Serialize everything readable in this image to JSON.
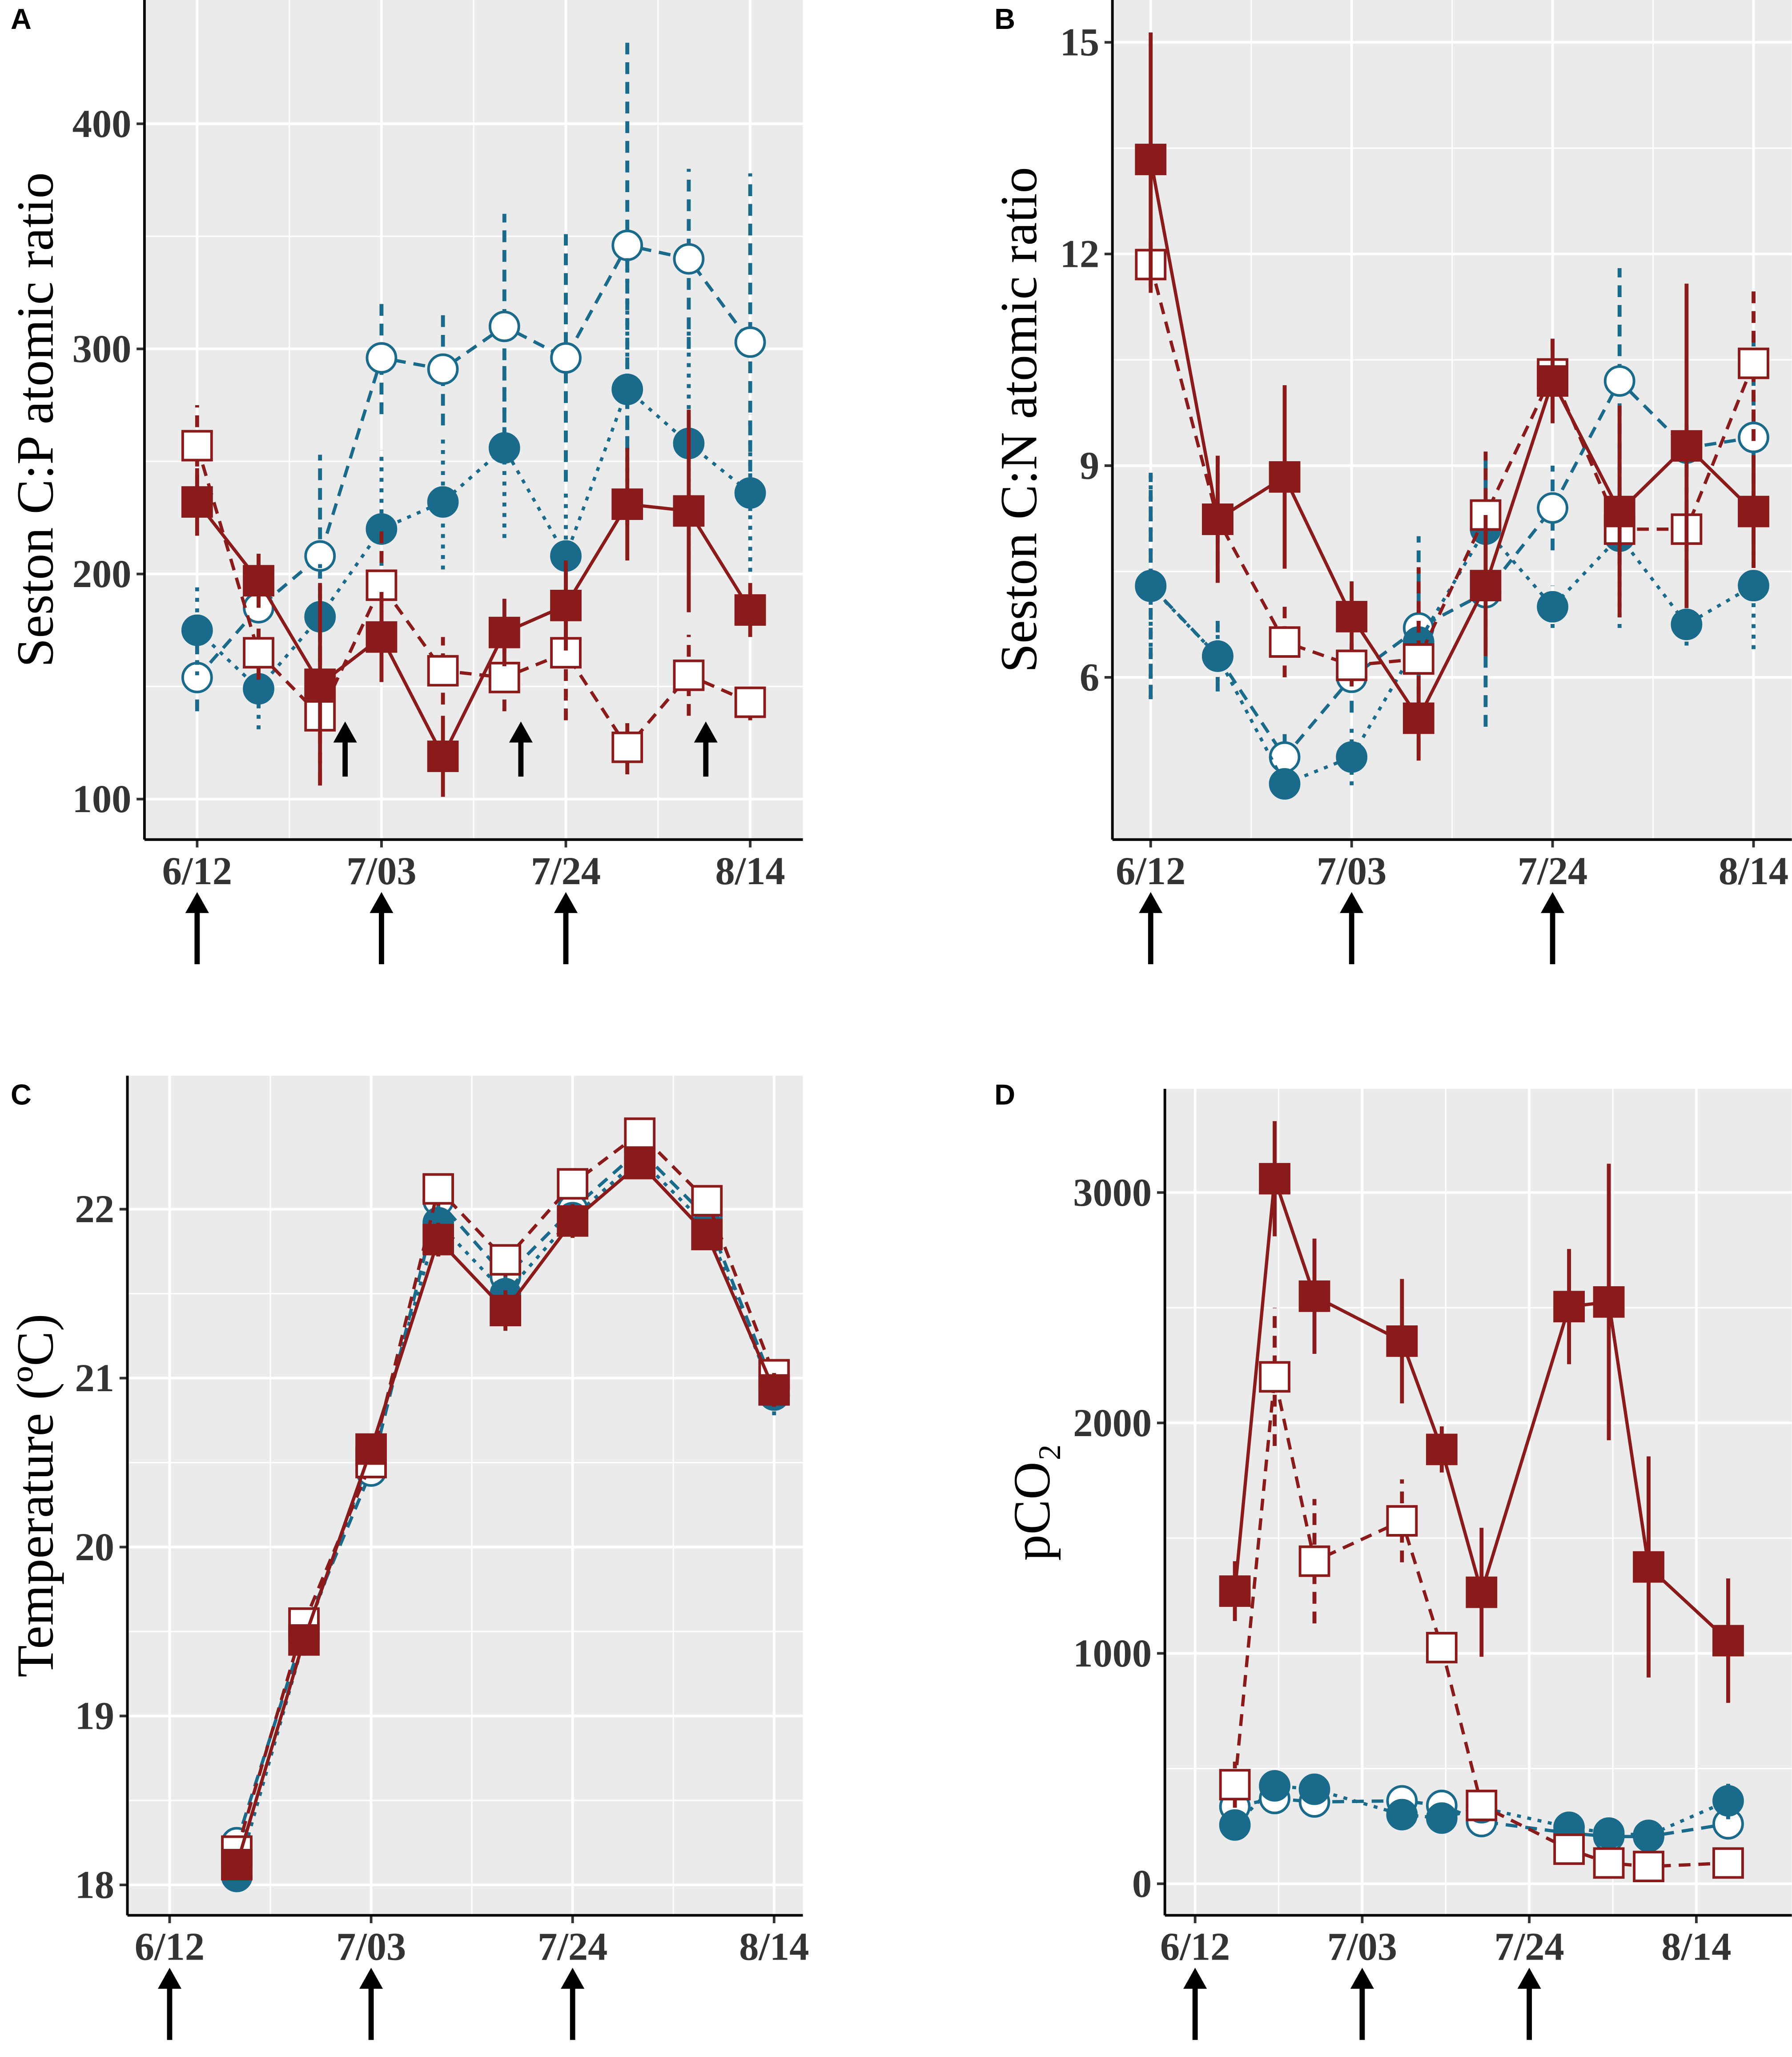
{
  "chart_data": [
    {
      "type": "line",
      "panel": "A",
      "y_label": "Seston C:P atomic ratio",
      "x": [
        0,
        7,
        14,
        21,
        28,
        35,
        42,
        49,
        56,
        63
      ],
      "xlim": [
        -6,
        69
      ],
      "xticks": [
        {
          "value": 0,
          "label": "6/12"
        },
        {
          "value": 21,
          "label": "7/03"
        },
        {
          "value": 42,
          "label": "7/24"
        },
        {
          "value": 63,
          "label": "8/14"
        }
      ],
      "ylim": [
        82,
        455
      ],
      "yticks": [
        100,
        200,
        300,
        400
      ],
      "grid": true,
      "series": [
        {
          "color": "#1a6a8c",
          "marker": "circle",
          "filled": false,
          "dash": "dashed",
          "values": [
            154,
            185,
            208,
            296,
            291,
            310,
            296,
            346,
            340,
            303
          ],
          "errors": [
            15,
            15,
            45,
            25,
            25,
            50,
            55,
            90,
            40,
            75
          ]
        },
        {
          "color": "#1a6a8c",
          "marker": "circle",
          "filled": true,
          "dash": "dotted",
          "values": [
            175,
            149,
            181,
            220,
            232,
            256,
            208,
            282,
            258,
            236
          ],
          "errors": [
            20,
            18,
            25,
            35,
            30,
            40,
            30,
            60,
            50,
            35
          ]
        },
        {
          "color": "#8b1a1a",
          "marker": "square",
          "filled": false,
          "dash": "dashed",
          "values": [
            257,
            165,
            137,
            195,
            157,
            154,
            165,
            123,
            155,
            143
          ],
          "errors": [
            18,
            12,
            30,
            25,
            15,
            15,
            30,
            12,
            18,
            8
          ]
        },
        {
          "color": "#8b1a1a",
          "marker": "square",
          "filled": true,
          "dash": "solid",
          "values": [
            232,
            197,
            151,
            172,
            119,
            174,
            186,
            231,
            228,
            184
          ],
          "errors": [
            15,
            12,
            45,
            20,
            18,
            15,
            20,
            25,
            45,
            12
          ]
        }
      ]
    },
    {
      "type": "line",
      "panel": "B",
      "y_label": "Seston C:N atomic ratio",
      "x": [
        0,
        7,
        14,
        21,
        28,
        35,
        42,
        49,
        56,
        63
      ],
      "xlim": [
        -4,
        67
      ],
      "xticks": [
        {
          "value": 0,
          "label": "6/12"
        },
        {
          "value": 21,
          "label": "7/03"
        },
        {
          "value": 42,
          "label": "7/24"
        },
        {
          "value": 63,
          "label": "8/14"
        }
      ],
      "ylim": [
        3.7,
        15.6
      ],
      "yticks": [
        6,
        9,
        12,
        15
      ],
      "grid": true,
      "series": [
        {
          "color": "#1a6a8c",
          "marker": "circle",
          "filled": false,
          "dash": "dashed",
          "values": [
            7.3,
            6.3,
            4.87,
            6.0,
            6.7,
            7.2,
            8.4,
            10.2,
            9.25,
            9.4
          ],
          "errors": [
            1.6,
            0.5,
            0.4,
            0.5,
            1.3,
            1.9,
            0.6,
            1.6,
            0.4,
            1.5
          ]
        },
        {
          "color": "#1a6a8c",
          "marker": "circle",
          "filled": true,
          "dash": "dotted",
          "values": [
            7.29,
            6.3,
            4.49,
            4.87,
            6.5,
            8.1,
            7.0,
            8.0,
            6.75,
            7.3
          ],
          "errors": [
            1.6,
            0.5,
            0.2,
            0.4,
            0.5,
            0.7,
            0.3,
            1.3,
            0.3,
            0.9
          ]
        },
        {
          "color": "#8b1a1a",
          "marker": "square",
          "filled": false,
          "dash": "dashed",
          "values": [
            11.85,
            8.24,
            6.5,
            6.17,
            6.26,
            8.3,
            10.3,
            8.1,
            8.1,
            10.45
          ],
          "errors": [
            0.4,
            0.9,
            0.5,
            0.3,
            1.3,
            0.9,
            0.5,
            0.5,
            0.6,
            1.1
          ]
        },
        {
          "color": "#8b1a1a",
          "marker": "square",
          "filled": true,
          "dash": "solid",
          "values": [
            13.34,
            8.24,
            8.84,
            6.86,
            5.42,
            7.3,
            10.2,
            8.35,
            9.28,
            8.35
          ],
          "errors": [
            1.8,
            0.9,
            1.3,
            0.5,
            0.6,
            1.0,
            0.6,
            1.5,
            2.3,
            0.8
          ]
        }
      ]
    },
    {
      "type": "line",
      "panel": "C",
      "y_label": "Temperature (ºC)",
      "x": [
        7,
        14,
        21,
        28,
        35,
        42,
        49,
        56,
        63
      ],
      "xlim": [
        -4.4,
        66
      ],
      "xticks": [
        {
          "value": 0,
          "label": "6/12"
        },
        {
          "value": 21,
          "label": "7/03"
        },
        {
          "value": 42,
          "label": "7/24"
        },
        {
          "value": 63,
          "label": "8/14"
        }
      ],
      "ylim": [
        17.82,
        22.79
      ],
      "yticks": [
        18,
        19,
        20,
        21,
        22
      ],
      "grid": true,
      "series": [
        {
          "color": "#1a6a8c",
          "marker": "circle",
          "filled": false,
          "dash": "dashed",
          "values": [
            18.25,
            19.5,
            20.45,
            22.05,
            21.6,
            22.0,
            22.35,
            21.95,
            20.95
          ],
          "errors": [
            0.05,
            0.05,
            0.08,
            0.1,
            0.1,
            0.08,
            0.08,
            0.08,
            0.12
          ]
        },
        {
          "color": "#1a6a8c",
          "marker": "circle",
          "filled": true,
          "dash": "dotted",
          "values": [
            18.05,
            19.45,
            20.55,
            21.92,
            21.5,
            21.95,
            22.3,
            21.9,
            20.9
          ],
          "errors": [
            0.05,
            0.05,
            0.08,
            0.1,
            0.1,
            0.08,
            0.08,
            0.08,
            0.12
          ]
        },
        {
          "color": "#8b1a1a",
          "marker": "square",
          "filled": false,
          "dash": "dashed",
          "values": [
            18.2,
            19.55,
            20.5,
            22.12,
            21.7,
            22.15,
            22.45,
            22.05,
            21.02
          ],
          "errors": [
            0.05,
            0.05,
            0.08,
            0.1,
            0.1,
            0.08,
            0.08,
            0.08,
            0.1
          ]
        },
        {
          "color": "#8b1a1a",
          "marker": "square",
          "filled": true,
          "dash": "solid",
          "values": [
            18.12,
            19.45,
            20.58,
            21.82,
            21.4,
            21.93,
            22.27,
            21.85,
            20.93
          ],
          "errors": [
            0.05,
            0.05,
            0.08,
            0.1,
            0.12,
            0.1,
            0.08,
            0.08,
            0.1
          ]
        }
      ]
    },
    {
      "type": "line",
      "panel": "D",
      "y_label": "pCO₂",
      "x": [
        5,
        10,
        15,
        26,
        31,
        36,
        47,
        52,
        57,
        67
      ],
      "xlim": [
        -3.8,
        75
      ],
      "xticks": [
        {
          "value": 0,
          "label": "6/12"
        },
        {
          "value": 21,
          "label": "7/03"
        },
        {
          "value": 42,
          "label": "7/24"
        },
        {
          "value": 63,
          "label": "8/14"
        }
      ],
      "ylim": [
        -137,
        3450
      ],
      "yticks": [
        0,
        1000,
        2000,
        3000
      ],
      "grid": true,
      "series": [
        {
          "color": "#1a6a8c",
          "marker": "circle",
          "filled": false,
          "dash": "dashed",
          "values": [
            335,
            370,
            355,
            360,
            340,
            270,
            220,
            205,
            205,
            260
          ],
          "errors": [
            40,
            40,
            40,
            50,
            40,
            40,
            40,
            40,
            40,
            40
          ]
        },
        {
          "color": "#1a6a8c",
          "marker": "circle",
          "filled": true,
          "dash": "dotted",
          "values": [
            255,
            425,
            410,
            300,
            285,
            330,
            245,
            220,
            210,
            360
          ],
          "errors": [
            40,
            50,
            60,
            40,
            40,
            40,
            40,
            40,
            40,
            80
          ]
        },
        {
          "color": "#8b1a1a",
          "marker": "square",
          "filled": false,
          "dash": "dashed",
          "values": [
            430,
            2200,
            1400,
            1575,
            1025,
            340,
            150,
            90,
            75,
            90
          ],
          "errors": [
            100,
            300,
            270,
            180,
            40,
            40,
            30,
            20,
            20,
            20
          ]
        },
        {
          "color": "#8b1a1a",
          "marker": "square",
          "filled": true,
          "dash": "solid",
          "values": [
            1270,
            3060,
            2550,
            2355,
            1885,
            1265,
            2505,
            2525,
            1375,
            1055
          ],
          "errors": [
            130,
            250,
            250,
            270,
            100,
            280,
            250,
            600,
            480,
            270
          ]
        }
      ]
    }
  ]
}
